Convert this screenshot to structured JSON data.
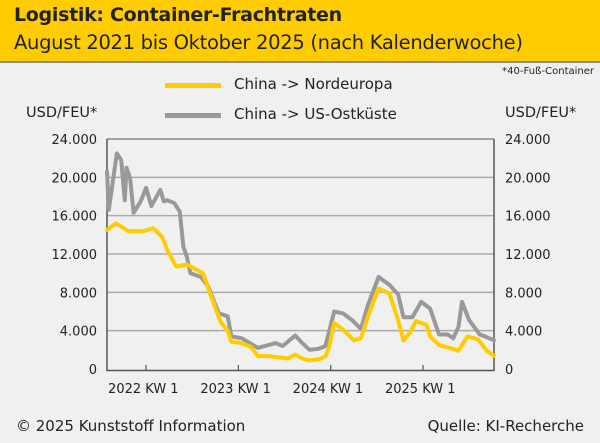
{
  "header": {
    "title": "Logistik: Container-Frachtraten",
    "subtitle": "August 2021 bis Oktober 2025 (nach Kalenderwoche)"
  },
  "footnote": "*40-Fuß-Container",
  "footer": {
    "copyright": "© 2025 Kunststoff Information",
    "source": "Quelle: KI-Recherche"
  },
  "colors": {
    "china_nordeuropa": "#ffcc00",
    "china_us": "#999999",
    "header_bg": "#ffcc00"
  },
  "chart_data": {
    "type": "line",
    "title": "Logistik: Container-Frachtraten",
    "subtitle": "August 2021 bis Oktober 2025 (nach Kalenderwoche)",
    "ylabel_left": "USD/FEU*",
    "ylabel_right": "USD/FEU*",
    "ylim": [
      0,
      24000
    ],
    "yticks": [
      0,
      4000,
      8000,
      12000,
      16000,
      20000,
      24000
    ],
    "ytick_labels": [
      "0",
      "4.000",
      "8.000",
      "12.000",
      "16.000",
      "20.000",
      "24.000"
    ],
    "x_unit": "weeks since 2021 KW 31",
    "xlim": [
      0,
      218
    ],
    "xticks": [
      {
        "week": 22,
        "label": "2022 KW 1"
      },
      {
        "week": 74,
        "label": "2023 KW 1"
      },
      {
        "week": 126,
        "label": "2024 KW 1"
      },
      {
        "week": 178,
        "label": "2025 KW 1"
      }
    ],
    "grid": true,
    "legend_position": "top-center",
    "series": [
      {
        "name": "China -> Nordeuropa",
        "color": "#ffcc00",
        "points": [
          [
            0,
            14500
          ],
          [
            5,
            15200
          ],
          [
            12,
            14400
          ],
          [
            21,
            14400
          ],
          [
            26,
            14700
          ],
          [
            31,
            13800
          ],
          [
            34,
            12400
          ],
          [
            39,
            10700
          ],
          [
            45,
            10900
          ],
          [
            50,
            10400
          ],
          [
            54,
            10000
          ],
          [
            58,
            7900
          ],
          [
            64,
            4900
          ],
          [
            68,
            4000
          ],
          [
            70,
            2850
          ],
          [
            76,
            2700
          ],
          [
            81,
            2300
          ],
          [
            85,
            1350
          ],
          [
            91,
            1350
          ],
          [
            102,
            1100
          ],
          [
            106,
            1500
          ],
          [
            110,
            1100
          ],
          [
            114,
            900
          ],
          [
            119,
            1000
          ],
          [
            123,
            1300
          ],
          [
            125,
            2200
          ],
          [
            128,
            4800
          ],
          [
            133,
            4100
          ],
          [
            139,
            3000
          ],
          [
            143,
            3200
          ],
          [
            147,
            5500
          ],
          [
            153,
            8400
          ],
          [
            159,
            7900
          ],
          [
            164,
            5100
          ],
          [
            167,
            3000
          ],
          [
            171,
            3900
          ],
          [
            174,
            5000
          ],
          [
            180,
            4600
          ],
          [
            182,
            3400
          ],
          [
            187,
            2500
          ],
          [
            195,
            2100
          ],
          [
            198,
            1900
          ],
          [
            203,
            3400
          ],
          [
            209,
            3100
          ],
          [
            214,
            1900
          ],
          [
            218,
            1400
          ]
        ]
      },
      {
        "name": "China -> US-Ostküste",
        "color": "#999999",
        "points": [
          [
            0,
            20600
          ],
          [
            1,
            16600
          ],
          [
            5.5,
            22500
          ],
          [
            8,
            21800
          ],
          [
            10,
            17600
          ],
          [
            11,
            21000
          ],
          [
            13,
            19900
          ],
          [
            15,
            16300
          ],
          [
            19,
            17500
          ],
          [
            22,
            18900
          ],
          [
            25,
            17000
          ],
          [
            30,
            18700
          ],
          [
            32,
            17500
          ],
          [
            34,
            17600
          ],
          [
            38,
            17300
          ],
          [
            41,
            16400
          ],
          [
            43,
            12800
          ],
          [
            45,
            11700
          ],
          [
            47,
            10000
          ],
          [
            53,
            9600
          ],
          [
            57,
            8600
          ],
          [
            63,
            5800
          ],
          [
            68,
            5500
          ],
          [
            70,
            3400
          ],
          [
            76,
            3200
          ],
          [
            85,
            2200
          ],
          [
            95,
            2700
          ],
          [
            99,
            2400
          ],
          [
            106,
            3500
          ],
          [
            110,
            2700
          ],
          [
            114,
            2000
          ],
          [
            119,
            2100
          ],
          [
            123,
            2400
          ],
          [
            128,
            6000
          ],
          [
            133,
            5800
          ],
          [
            138,
            5100
          ],
          [
            143,
            4200
          ],
          [
            147,
            6700
          ],
          [
            153,
            9600
          ],
          [
            159,
            8800
          ],
          [
            164,
            7800
          ],
          [
            167,
            5400
          ],
          [
            172,
            5400
          ],
          [
            177,
            7000
          ],
          [
            182,
            6300
          ],
          [
            187,
            3600
          ],
          [
            192,
            3600
          ],
          [
            195,
            3200
          ],
          [
            198,
            4400
          ],
          [
            200,
            7000
          ],
          [
            204,
            5100
          ],
          [
            210,
            3600
          ],
          [
            213,
            3400
          ],
          [
            218,
            3000
          ]
        ]
      }
    ]
  }
}
